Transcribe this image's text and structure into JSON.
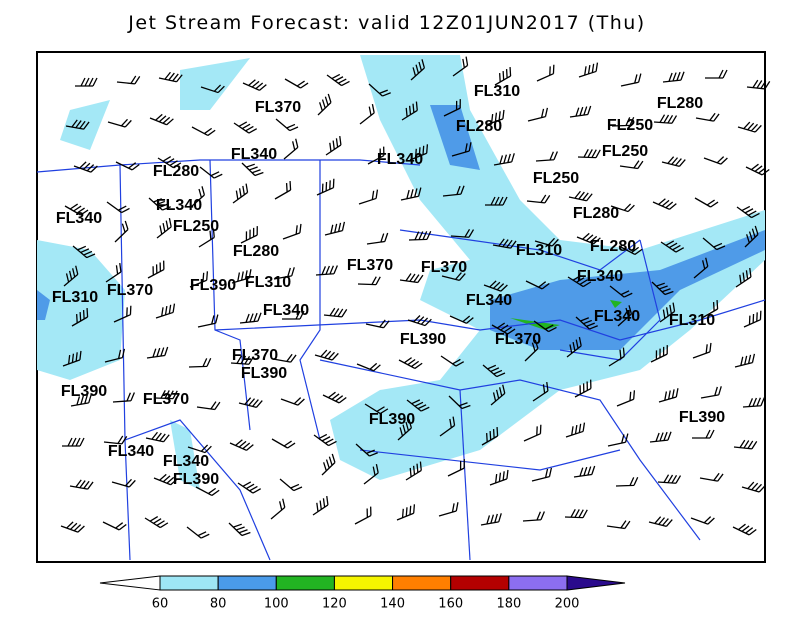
{
  "title": "Jet Stream Forecast:  valid 12Z01JUN2017 (Thu)",
  "flight_levels": [
    "FL370",
    "FL310",
    "FL280",
    "FL280",
    "FL250",
    "FL340",
    "FL340",
    "FL250",
    "FL280",
    "FL250",
    "FL340",
    "FL280",
    "FL340",
    "FL250",
    "FL280",
    "FL280",
    "FL310",
    "FL370",
    "FL370",
    "FL340",
    "FL310",
    "FL370",
    "FL390",
    "FL310",
    "FL340",
    "FL340",
    "FL340",
    "FL310",
    "FL390",
    "FL370",
    "FL370",
    "FL390",
    "FL390",
    "FL370",
    "FL390",
    "FL390",
    "FL340",
    "FL340",
    "FL390"
  ],
  "colorbar": {
    "ticks": [
      60,
      80,
      100,
      120,
      140,
      160,
      180,
      200
    ],
    "colors": [
      "#9ee6f5",
      "#4a9bea",
      "#22b422",
      "#f5f500",
      "#ff7f00",
      "#b40000",
      "#8c6ef0",
      "#2a0a8c"
    ]
  }
}
